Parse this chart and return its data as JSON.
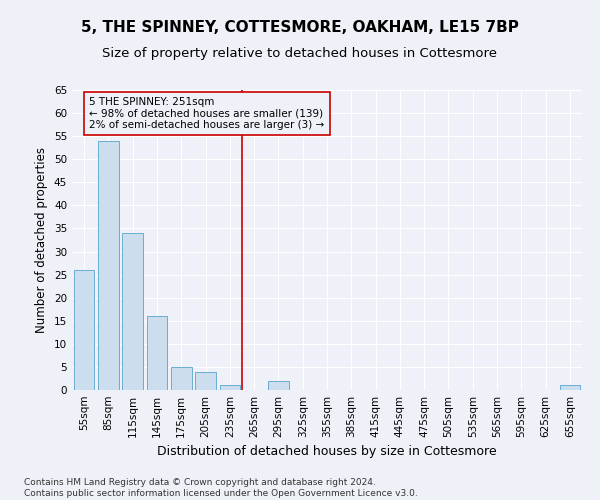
{
  "title": "5, THE SPINNEY, COTTESMORE, OAKHAM, LE15 7BP",
  "subtitle": "Size of property relative to detached houses in Cottesmore",
  "xlabel": "Distribution of detached houses by size in Cottesmore",
  "ylabel": "Number of detached properties",
  "categories": [
    "55sqm",
    "85sqm",
    "115sqm",
    "145sqm",
    "175sqm",
    "205sqm",
    "235sqm",
    "265sqm",
    "295sqm",
    "325sqm",
    "355sqm",
    "385sqm",
    "415sqm",
    "445sqm",
    "475sqm",
    "505sqm",
    "535sqm",
    "565sqm",
    "595sqm",
    "625sqm",
    "655sqm"
  ],
  "values": [
    26,
    54,
    34,
    16,
    5,
    4,
    1,
    0,
    2,
    0,
    0,
    0,
    0,
    0,
    0,
    0,
    0,
    0,
    0,
    0,
    1
  ],
  "bar_color": "#ccdded",
  "bar_edge_color": "#6aadd5",
  "vline_x": 6.5,
  "vline_color": "#cc0000",
  "ylim": [
    0,
    65
  ],
  "yticks": [
    0,
    5,
    10,
    15,
    20,
    25,
    30,
    35,
    40,
    45,
    50,
    55,
    60,
    65
  ],
  "annotation_title": "5 THE SPINNEY: 251sqm",
  "annotation_line1": "← 98% of detached houses are smaller (139)",
  "annotation_line2": "2% of semi-detached houses are larger (3) →",
  "annotation_box_color": "#cc0000",
  "footer_line1": "Contains HM Land Registry data © Crown copyright and database right 2024.",
  "footer_line2": "Contains public sector information licensed under the Open Government Licence v3.0.",
  "background_color": "#eef2f8",
  "grid_color": "#ffffff",
  "title_fontsize": 11,
  "subtitle_fontsize": 9.5,
  "xlabel_fontsize": 9,
  "ylabel_fontsize": 8.5,
  "tick_fontsize": 7.5,
  "annotation_fontsize": 7.5,
  "footer_fontsize": 6.5
}
